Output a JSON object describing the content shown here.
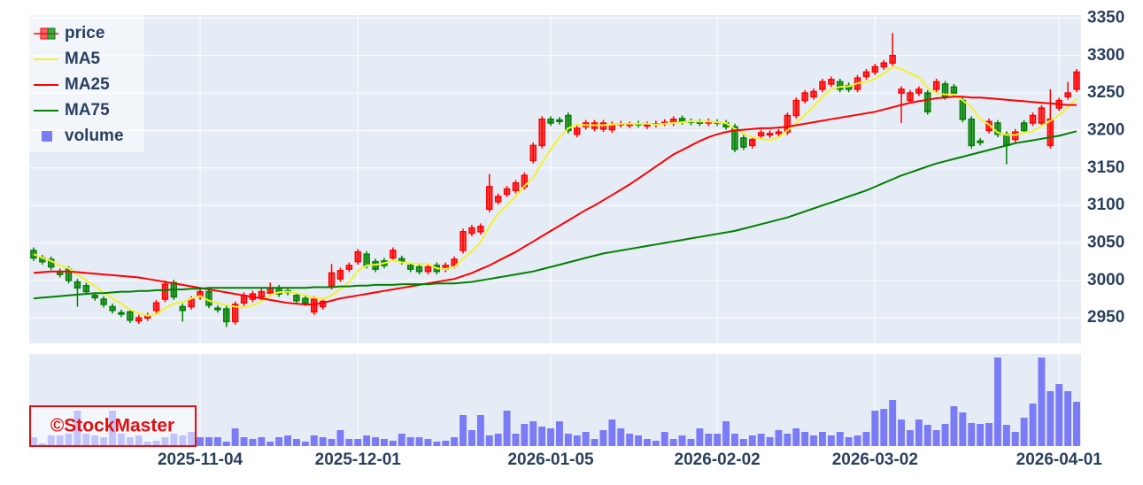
{
  "chart_data": {
    "type": "candlestick",
    "price_name": "price",
    "up_color": "#ff0000",
    "down_color": "#008000",
    "grid": true,
    "legend": "top-left",
    "watermark": "©StockMaster",
    "x": [
      "2025-10-06",
      "2025-10-07",
      "2025-10-08",
      "2025-10-09",
      "2025-10-10",
      "2025-10-14",
      "2025-10-15",
      "2025-10-16",
      "2025-10-17",
      "2025-10-20",
      "2025-10-21",
      "2025-10-22",
      "2025-10-23",
      "2025-10-24",
      "2025-10-27",
      "2025-10-28",
      "2025-10-29",
      "2025-10-30",
      "2025-10-31",
      "2025-11-04",
      "2025-11-05",
      "2025-11-06",
      "2025-11-07",
      "2025-11-10",
      "2025-11-11",
      "2025-11-12",
      "2025-11-13",
      "2025-11-14",
      "2025-11-17",
      "2025-11-18",
      "2025-11-19",
      "2025-11-20",
      "2025-11-21",
      "2025-11-25",
      "2025-11-26",
      "2025-11-27",
      "2025-11-28",
      "2025-12-01",
      "2025-12-02",
      "2025-12-03",
      "2025-12-04",
      "2025-12-05",
      "2025-12-08",
      "2025-12-09",
      "2025-12-10",
      "2025-12-11",
      "2025-12-12",
      "2025-12-15",
      "2025-12-16",
      "2025-12-17",
      "2025-12-18",
      "2025-12-19",
      "2025-12-22",
      "2025-12-23",
      "2025-12-24",
      "2025-12-25",
      "2025-12-26",
      "2025-12-29",
      "2025-12-30",
      "2026-01-05",
      "2026-01-06",
      "2026-01-07",
      "2026-01-08",
      "2026-01-09",
      "2026-01-13",
      "2026-01-14",
      "2026-01-15",
      "2026-01-16",
      "2026-01-19",
      "2026-01-20",
      "2026-01-21",
      "2026-01-22",
      "2026-01-23",
      "2026-01-26",
      "2026-01-27",
      "2026-01-28",
      "2026-01-29",
      "2026-01-30",
      "2026-02-02",
      "2026-02-03",
      "2026-02-04",
      "2026-02-05",
      "2026-02-06",
      "2026-02-09",
      "2026-02-10",
      "2026-02-12",
      "2026-02-13",
      "2026-02-16",
      "2026-02-17",
      "2026-02-18",
      "2026-02-19",
      "2026-02-20",
      "2026-02-24",
      "2026-02-25",
      "2026-02-26",
      "2026-02-27",
      "2026-03-02",
      "2026-03-03",
      "2026-03-04",
      "2026-03-05",
      "2026-03-06",
      "2026-03-09",
      "2026-03-10",
      "2026-03-11",
      "2026-03-12",
      "2026-03-13",
      "2026-03-16",
      "2026-03-17",
      "2026-03-18",
      "2026-03-19",
      "2026-03-23",
      "2026-03-24",
      "2026-03-25",
      "2026-03-26",
      "2026-03-27",
      "2026-03-30",
      "2026-03-31",
      "2026-04-01",
      "2026-04-02",
      "2026-04-03"
    ],
    "open": [
      3040,
      3030,
      3028,
      3012,
      3015,
      2998,
      2993,
      2980,
      2975,
      2965,
      2957,
      2958,
      2946,
      2950,
      2960,
      2975,
      2997,
      2965,
      2965,
      2978,
      2985,
      2963,
      2962,
      2945,
      2970,
      2975,
      2978,
      2983,
      2990,
      2986,
      2980,
      2976,
      2958,
      2965,
      2992,
      3002,
      3015,
      3025,
      3035,
      3025,
      3026,
      3030,
      3029,
      3020,
      3018,
      3012,
      3020,
      3015,
      3020,
      3040,
      3063,
      3065,
      3095,
      3105,
      3115,
      3120,
      3125,
      3160,
      3180,
      3215,
      3214,
      3220,
      3195,
      3205,
      3203,
      3202,
      3201,
      3208,
      3207,
      3209,
      3206,
      3208,
      3210,
      3210,
      3216,
      3212,
      3211,
      3210,
      3211,
      3210,
      3205,
      3190,
      3180,
      3193,
      3194,
      3196,
      3198,
      3220,
      3240,
      3245,
      3255,
      3262,
      3265,
      3260,
      3255,
      3272,
      3278,
      3285,
      3290,
      3250,
      3240,
      3250,
      3250,
      3255,
      3262,
      3258,
      3240,
      3215,
      3186,
      3200,
      3210,
      3195,
      3188,
      3210,
      3210,
      3210,
      3180,
      3230,
      3245,
      3255
    ],
    "high": [
      3044,
      3034,
      3032,
      3016,
      3019,
      3002,
      2997,
      2984,
      2979,
      2969,
      2961,
      2962,
      2954,
      2957,
      2974,
      3000,
      3001,
      2969,
      2979,
      2989,
      2989,
      2967,
      2966,
      2972,
      2984,
      2986,
      2989,
      2997,
      2994,
      2990,
      2984,
      2980,
      2979,
      2976,
      3022,
      3017,
      3024,
      3042,
      3039,
      3029,
      3030,
      3044,
      3033,
      3024,
      3022,
      3022,
      3024,
      3024,
      3032,
      3069,
      3074,
      3076,
      3142,
      3116,
      3126,
      3134,
      3144,
      3184,
      3219,
      3219,
      3218,
      3224,
      3207,
      3214,
      3214,
      3214,
      3212,
      3213,
      3212,
      3213,
      3212,
      3213,
      3215,
      3219,
      3220,
      3216,
      3215,
      3216,
      3215,
      3214,
      3209,
      3194,
      3192,
      3201,
      3200,
      3202,
      3224,
      3244,
      3254,
      3256,
      3269,
      3272,
      3269,
      3264,
      3274,
      3282,
      3289,
      3294,
      3330,
      3259,
      3254,
      3259,
      3254,
      3269,
      3266,
      3262,
      3244,
      3219,
      3190,
      3216,
      3214,
      3199,
      3202,
      3214,
      3224,
      3234,
      3255,
      3244,
      3265,
      3282
    ],
    "low": [
      3026,
      3021,
      3014,
      3004,
      2996,
      2965,
      2981,
      2973,
      2964,
      2956,
      2951,
      2943,
      2942,
      2946,
      2956,
      2971,
      2974,
      2945,
      2961,
      2974,
      2963,
      2957,
      2938,
      2941,
      2966,
      2971,
      2974,
      2979,
      2978,
      2980,
      2969,
      2966,
      2954,
      2961,
      2988,
      2998,
      3011,
      3021,
      3016,
      3011,
      3016,
      3026,
      3021,
      3011,
      3008,
      3008,
      3008,
      3011,
      3016,
      3036,
      3059,
      3061,
      3091,
      3101,
      3111,
      3116,
      3121,
      3156,
      3176,
      3206,
      3208,
      3196,
      3191,
      3201,
      3199,
      3198,
      3197,
      3204,
      3203,
      3204,
      3202,
      3204,
      3206,
      3206,
      3208,
      3207,
      3206,
      3206,
      3206,
      3201,
      3171,
      3174,
      3176,
      3189,
      3190,
      3192,
      3194,
      3216,
      3236,
      3241,
      3251,
      3258,
      3251,
      3251,
      3251,
      3268,
      3274,
      3281,
      3286,
      3210,
      3236,
      3246,
      3221,
      3251,
      3241,
      3246,
      3211,
      3176,
      3180,
      3196,
      3191,
      3155,
      3184,
      3196,
      3206,
      3206,
      3176,
      3226,
      3241,
      3251
    ],
    "close": [
      3030,
      3025,
      3018,
      3008,
      3000,
      2990,
      2985,
      2977,
      2968,
      2960,
      2955,
      2947,
      2950,
      2953,
      2970,
      2995,
      2978,
      2960,
      2975,
      2985,
      2967,
      2961,
      2945,
      2968,
      2980,
      2982,
      2985,
      2990,
      2982,
      2984,
      2973,
      2970,
      2975,
      2972,
      3010,
      3013,
      3020,
      3038,
      3020,
      3015,
      3020,
      3040,
      3025,
      3015,
      3012,
      3018,
      3012,
      3020,
      3028,
      3065,
      3070,
      3072,
      3125,
      3112,
      3122,
      3130,
      3140,
      3180,
      3215,
      3210,
      3212,
      3200,
      3203,
      3210,
      3210,
      3210,
      3208,
      3209,
      3208,
      3208,
      3208,
      3209,
      3211,
      3215,
      3212,
      3211,
      3210,
      3212,
      3210,
      3205,
      3175,
      3178,
      3188,
      3197,
      3196,
      3198,
      3220,
      3240,
      3250,
      3252,
      3265,
      3268,
      3255,
      3255,
      3270,
      3278,
      3285,
      3290,
      3300,
      3255,
      3250,
      3255,
      3225,
      3265,
      3245,
      3250,
      3215,
      3180,
      3184,
      3212,
      3195,
      3180,
      3198,
      3200,
      3220,
      3230,
      3215,
      3240,
      3250,
      3278
    ],
    "series": [
      {
        "name": "MA5",
        "color": "#f2f230",
        "values": [
          3035,
          3030,
          3026,
          3020,
          3016,
          3008,
          3000,
          2992,
          2984,
          2976,
          2969,
          2961,
          2956,
          2953,
          2955,
          2963,
          2969,
          2971,
          2976,
          2979,
          2973,
          2970,
          2967,
          2965,
          2964,
          2967,
          2972,
          2981,
          2984,
          2985,
          2983,
          2980,
          2977,
          2975,
          2980,
          2988,
          2998,
          3013,
          3020,
          3021,
          3023,
          3027,
          3024,
          3023,
          3022,
          3022,
          3016,
          3015,
          3018,
          3029,
          3039,
          3051,
          3072,
          3089,
          3100,
          3112,
          3126,
          3137,
          3157,
          3175,
          3191,
          3203,
          3208,
          3207,
          3207,
          3207,
          3208,
          3209,
          3209,
          3209,
          3209,
          3208,
          3209,
          3210,
          3211,
          3212,
          3212,
          3212,
          3211,
          3210,
          3202,
          3196,
          3191,
          3189,
          3187,
          3191,
          3200,
          3210,
          3221,
          3232,
          3245,
          3255,
          3258,
          3259,
          3263,
          3265,
          3269,
          3276,
          3285,
          3282,
          3276,
          3271,
          3257,
          3250,
          3248,
          3248,
          3240,
          3231,
          3215,
          3208,
          3197,
          3194,
          3194,
          3197,
          3199,
          3206,
          3213,
          3221,
          3231,
          3243
        ]
      },
      {
        "name": "MA25",
        "color": "#ff0000",
        "values": [
          3010,
          3011,
          3012,
          3012,
          3012,
          3011,
          3010,
          3009,
          3008,
          3007,
          3006,
          3005,
          3004,
          3002,
          3000,
          2998,
          2996,
          2994,
          2992,
          2990,
          2988,
          2986,
          2984,
          2982,
          2980,
          2978,
          2976,
          2974,
          2972,
          2970,
          2969,
          2968,
          2968,
          2970,
          2973,
          2976,
          2978,
          2980,
          2982,
          2984,
          2986,
          2988,
          2990,
          2992,
          2994,
          2996,
          2998,
          3000,
          3002,
          3006,
          3010,
          3015,
          3020,
          3026,
          3032,
          3038,
          3045,
          3052,
          3059,
          3066,
          3073,
          3080,
          3087,
          3094,
          3100,
          3107,
          3114,
          3121,
          3128,
          3136,
          3144,
          3152,
          3160,
          3168,
          3174,
          3180,
          3186,
          3191,
          3195,
          3198,
          3200,
          3201,
          3202,
          3203,
          3203,
          3204,
          3205,
          3207,
          3209,
          3211,
          3213,
          3215,
          3217,
          3219,
          3221,
          3223,
          3225,
          3228,
          3231,
          3234,
          3237,
          3239,
          3241,
          3243,
          3244,
          3245,
          3245,
          3244,
          3244,
          3243,
          3242,
          3241,
          3240,
          3239,
          3238,
          3237,
          3236,
          3235,
          3234,
          3234
        ]
      },
      {
        "name": "MA75",
        "color": "#008000",
        "values": [
          2976,
          2977,
          2978,
          2979,
          2980,
          2981,
          2982,
          2983,
          2983,
          2984,
          2985,
          2985,
          2986,
          2986,
          2987,
          2987,
          2988,
          2988,
          2989,
          2989,
          2990,
          2990,
          2990,
          2990,
          2990,
          2990,
          2990,
          2990,
          2990,
          2990,
          2990,
          2990,
          2991,
          2991,
          2991,
          2992,
          2992,
          2993,
          2993,
          2994,
          2994,
          2994,
          2995,
          2995,
          2995,
          2995,
          2996,
          2996,
          2996,
          2997,
          2998,
          3000,
          3002,
          3004,
          3006,
          3008,
          3010,
          3012,
          3015,
          3018,
          3021,
          3024,
          3027,
          3030,
          3033,
          3036,
          3038,
          3040,
          3042,
          3044,
          3046,
          3048,
          3050,
          3052,
          3054,
          3056,
          3058,
          3060,
          3062,
          3064,
          3066,
          3069,
          3072,
          3075,
          3078,
          3081,
          3084,
          3088,
          3092,
          3096,
          3100,
          3104,
          3108,
          3112,
          3116,
          3120,
          3125,
          3130,
          3135,
          3140,
          3144,
          3148,
          3152,
          3156,
          3159,
          3162,
          3165,
          3168,
          3171,
          3174,
          3177,
          3180,
          3183,
          3185,
          3187,
          3189,
          3191,
          3193,
          3196,
          3199
        ]
      }
    ],
    "volume": {
      "name": "volume",
      "color": "#7b7bf5",
      "ylim": [
        0,
        104
      ],
      "values": [
        10,
        3,
        12,
        12,
        14,
        40,
        14,
        12,
        10,
        40,
        14,
        10,
        12,
        5,
        6,
        10,
        14,
        12,
        16,
        10,
        10,
        10,
        5,
        20,
        10,
        8,
        10,
        5,
        10,
        12,
        8,
        5,
        12,
        10,
        8,
        18,
        8,
        8,
        12,
        10,
        8,
        6,
        14,
        10,
        10,
        8,
        5,
        6,
        10,
        35,
        18,
        35,
        12,
        14,
        40,
        14,
        25,
        28,
        22,
        20,
        28,
        14,
        12,
        16,
        8,
        18,
        30,
        20,
        14,
        12,
        8,
        6,
        16,
        8,
        12,
        8,
        20,
        14,
        14,
        28,
        14,
        8,
        12,
        14,
        10,
        18,
        14,
        20,
        16,
        12,
        16,
        12,
        16,
        10,
        12,
        16,
        40,
        42,
        52,
        30,
        18,
        30,
        24,
        18,
        25,
        45,
        38,
        26,
        25,
        26,
        100,
        24,
        16,
        32,
        48,
        100,
        62,
        70,
        62,
        50
      ]
    },
    "ylim": [
      2916,
      3354
    ],
    "yticks": [
      2950,
      3000,
      3050,
      3100,
      3150,
      3200,
      3250,
      3300,
      3350
    ],
    "xticks": [
      "2025-11-04",
      "2025-12-01",
      "2026-01-05",
      "2026-02-02",
      "2026-03-02",
      "2026-04-01"
    ]
  }
}
